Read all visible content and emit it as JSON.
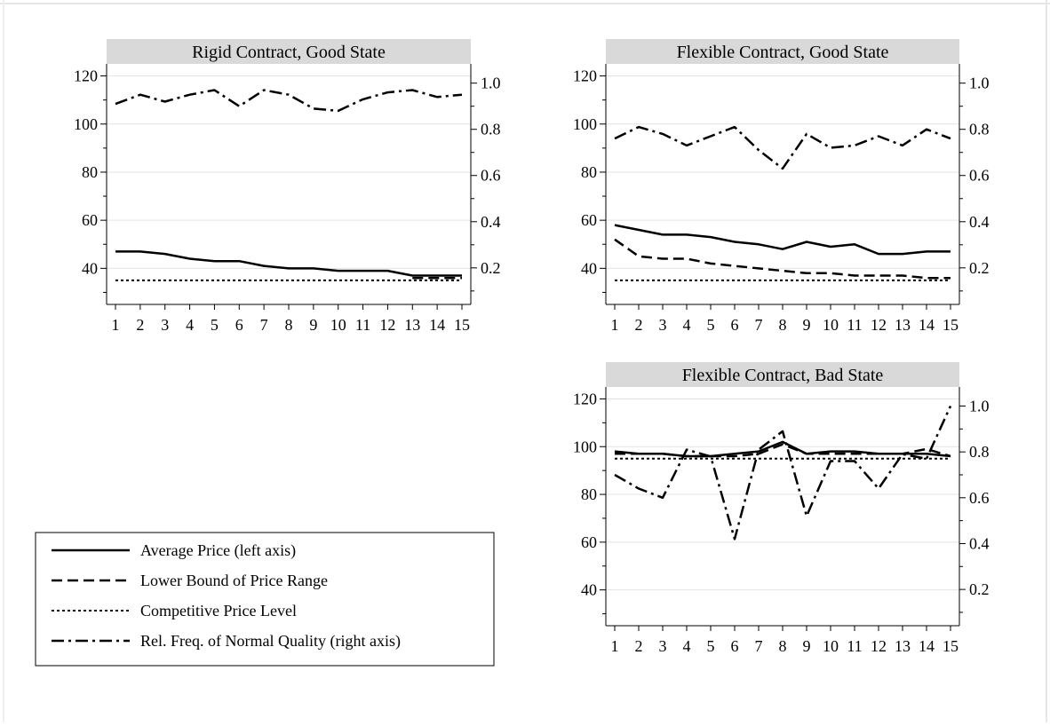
{
  "legend": {
    "entries": [
      {
        "label": "Average Price (left axis)",
        "style": "solid"
      },
      {
        "label": "Lower Bound of Price Range",
        "style": "dash"
      },
      {
        "label": "Competitive Price Level",
        "style": "dot"
      },
      {
        "label": "Rel. Freq. of Normal Quality (right axis)",
        "style": "dashdot"
      }
    ]
  },
  "chart_data": [
    {
      "type": "line",
      "title": "Rigid Contract, Good State",
      "x": [
        1,
        2,
        3,
        4,
        5,
        6,
        7,
        8,
        9,
        10,
        11,
        12,
        13,
        14,
        15
      ],
      "x_tick_labels": [
        "1",
        "2",
        "3",
        "4",
        "5",
        "6",
        "7",
        "8",
        "9",
        "10",
        "11",
        "12",
        "13",
        "14",
        "15"
      ],
      "y_left": {
        "range": [
          25,
          125
        ],
        "ticks": [
          40,
          60,
          80,
          100,
          120
        ]
      },
      "y_right": {
        "range": [
          0.0417,
          1.0833
        ],
        "ticks": [
          "0.2",
          "0.4",
          "0.6",
          "0.8",
          "1.0"
        ]
      },
      "grid": true,
      "series": [
        {
          "name": "Average Price (left axis)",
          "axis": "left",
          "style": "solid",
          "values": [
            47,
            47,
            46,
            44,
            43,
            43,
            41,
            40,
            40,
            39,
            39,
            39,
            37,
            37,
            37
          ]
        },
        {
          "name": "Lower Bound of Price Range",
          "axis": "left",
          "style": "dash",
          "values": [
            null,
            null,
            null,
            null,
            null,
            null,
            null,
            null,
            null,
            null,
            null,
            null,
            36,
            36,
            36
          ]
        },
        {
          "name": "Competitive Price Level",
          "axis": "left",
          "style": "dot",
          "values": [
            35,
            35,
            35,
            35,
            35,
            35,
            35,
            35,
            35,
            35,
            35,
            35,
            35,
            35,
            35
          ]
        },
        {
          "name": "Rel. Freq. of Normal Quality (right axis)",
          "axis": "right",
          "style": "dashdot",
          "values": [
            0.91,
            0.95,
            0.92,
            0.95,
            0.97,
            0.9,
            0.97,
            0.95,
            0.89,
            0.88,
            0.93,
            0.96,
            0.97,
            0.94,
            0.95
          ]
        }
      ]
    },
    {
      "type": "line",
      "title": "Flexible Contract, Good State",
      "x": [
        1,
        2,
        3,
        4,
        5,
        6,
        7,
        8,
        9,
        10,
        11,
        12,
        13,
        14,
        15
      ],
      "x_tick_labels": [
        "1",
        "2",
        "3",
        "4",
        "5",
        "6",
        "7",
        "8",
        "9",
        "10",
        "11",
        "12",
        "13",
        "14",
        "15"
      ],
      "y_left": {
        "range": [
          25,
          125
        ],
        "ticks": [
          40,
          60,
          80,
          100,
          120
        ]
      },
      "y_right": {
        "range": [
          0.0417,
          1.0833
        ],
        "ticks": [
          "0.2",
          "0.4",
          "0.6",
          "0.8",
          "1.0"
        ]
      },
      "grid": true,
      "series": [
        {
          "name": "Average Price (left axis)",
          "axis": "left",
          "style": "solid",
          "values": [
            58,
            56,
            54,
            54,
            53,
            51,
            50,
            48,
            51,
            49,
            50,
            46,
            46,
            47,
            47
          ]
        },
        {
          "name": "Lower Bound of Price Range",
          "axis": "left",
          "style": "dash",
          "values": [
            52,
            45,
            44,
            44,
            42,
            41,
            40,
            39,
            38,
            38,
            37,
            37,
            37,
            36,
            36
          ]
        },
        {
          "name": "Competitive Price Level",
          "axis": "left",
          "style": "dot",
          "values": [
            35,
            35,
            35,
            35,
            35,
            35,
            35,
            35,
            35,
            35,
            35,
            35,
            35,
            35,
            35
          ]
        },
        {
          "name": "Rel. Freq. of Normal Quality (right axis)",
          "axis": "right",
          "style": "dashdot",
          "values": [
            0.76,
            0.81,
            0.78,
            0.73,
            0.77,
            0.81,
            0.71,
            0.63,
            0.78,
            0.72,
            0.73,
            0.77,
            0.73,
            0.8,
            0.76
          ]
        }
      ]
    },
    {
      "type": "line",
      "title": "Flexible Contract, Bad State",
      "x": [
        1,
        2,
        3,
        4,
        5,
        6,
        7,
        8,
        9,
        10,
        11,
        12,
        13,
        14,
        15
      ],
      "x_tick_labels": [
        "1",
        "2",
        "3",
        "4",
        "5",
        "6",
        "7",
        "8",
        "9",
        "10",
        "11",
        "12",
        "13",
        "14",
        "15"
      ],
      "y_left": {
        "range": [
          25,
          125
        ],
        "ticks": [
          40,
          60,
          80,
          100,
          120
        ]
      },
      "y_right": {
        "range": [
          0.0417,
          1.0833
        ],
        "ticks": [
          "0.2",
          "0.4",
          "0.6",
          "0.8",
          "1.0"
        ]
      },
      "grid": true,
      "series": [
        {
          "name": "Average Price (left axis)",
          "axis": "left",
          "style": "solid",
          "values": [
            98,
            97,
            97,
            96,
            96,
            97,
            98,
            102,
            97,
            98,
            98,
            97,
            97,
            97,
            96
          ]
        },
        {
          "name": "Lower Bound of Price Range",
          "axis": "left",
          "style": "dash",
          "values": [
            97,
            97,
            97,
            96,
            96,
            96,
            97,
            101,
            97,
            97,
            97,
            97,
            97,
            99,
            96
          ]
        },
        {
          "name": "Competitive Price Level",
          "axis": "left",
          "style": "dot",
          "values": [
            95,
            95,
            95,
            95,
            95,
            95,
            95,
            95,
            95,
            95,
            95,
            95,
            95,
            95,
            95
          ]
        },
        {
          "name": "Rel. Freq. of Normal Quality (right axis)",
          "axis": "right",
          "style": "dashdot",
          "values": [
            0.7,
            0.64,
            0.6,
            0.81,
            0.78,
            0.42,
            0.81,
            0.89,
            0.52,
            0.76,
            0.76,
            0.64,
            0.79,
            0.77,
            1.0
          ]
        }
      ]
    }
  ]
}
